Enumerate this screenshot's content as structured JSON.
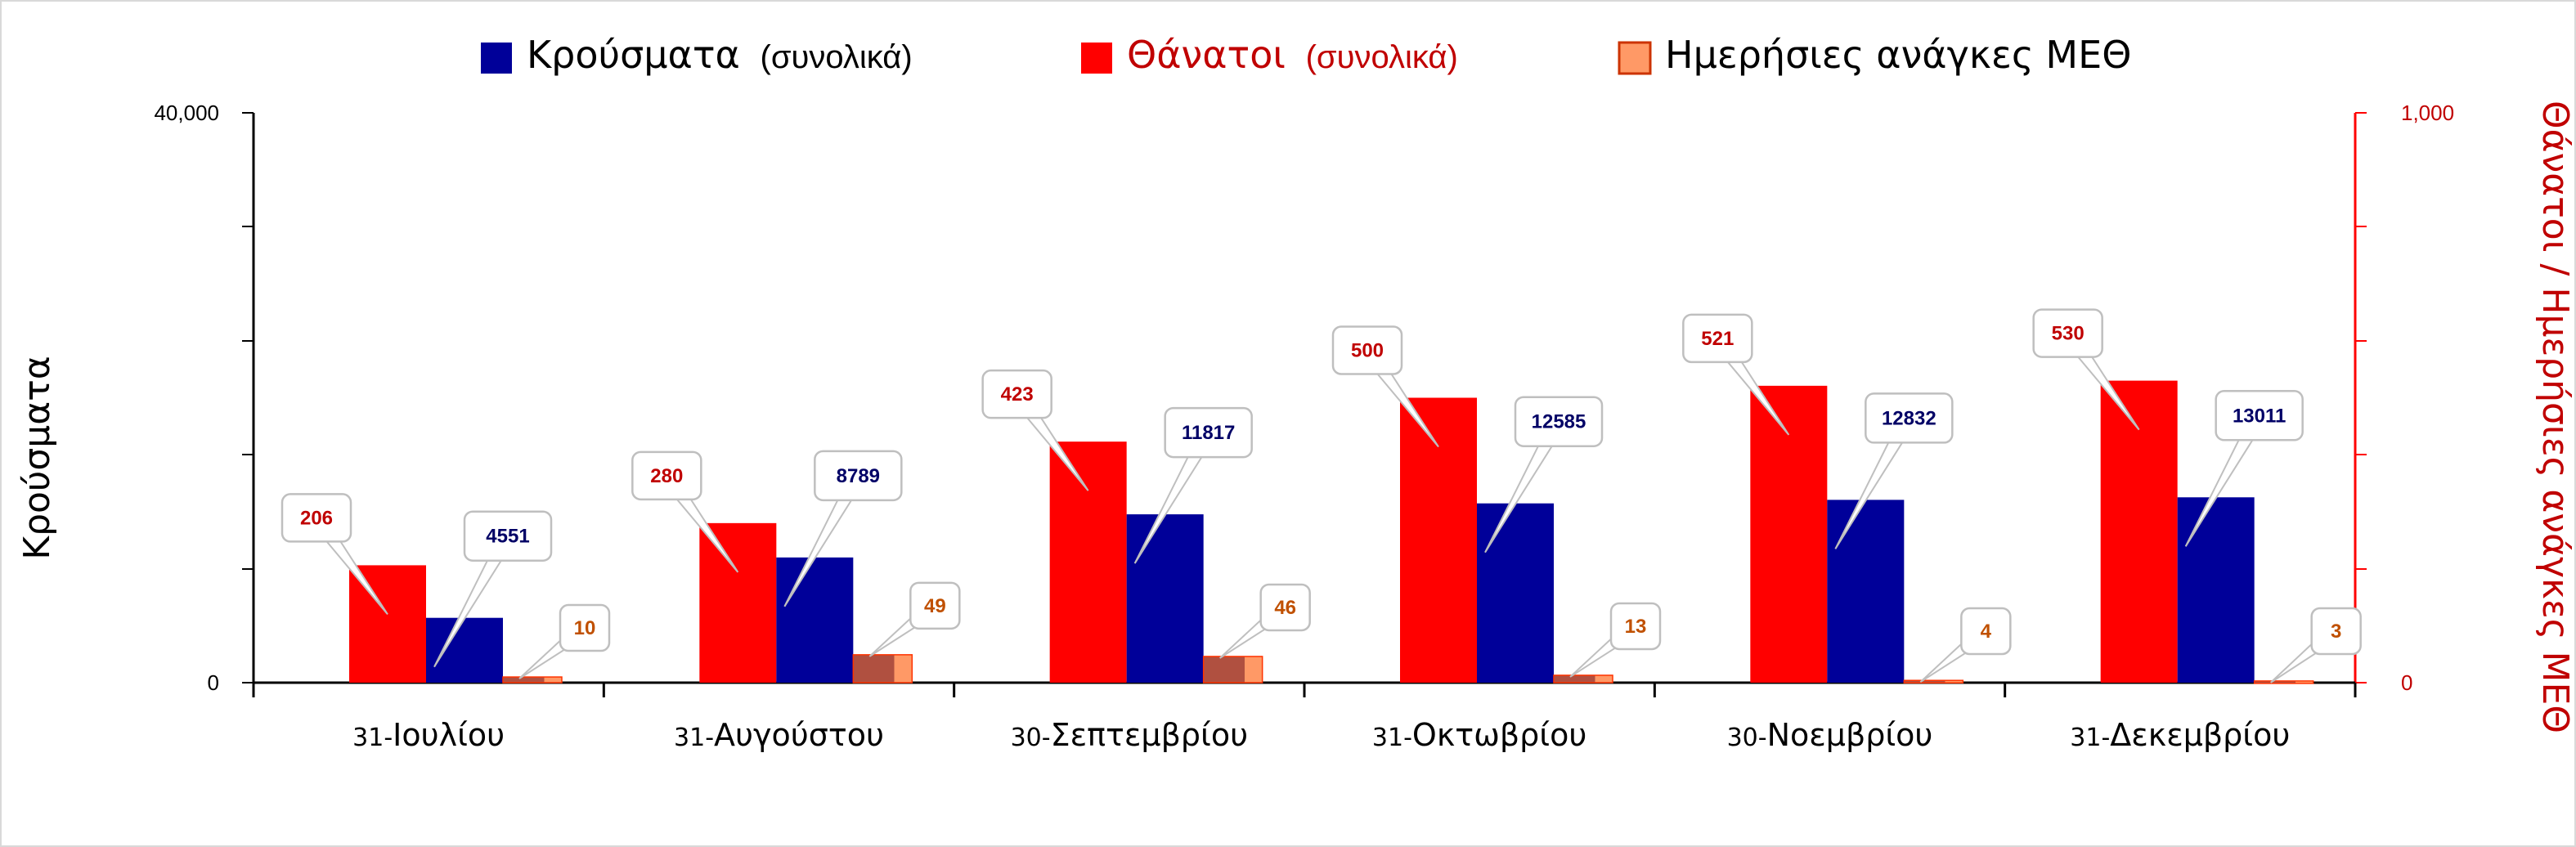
{
  "chart_data": {
    "type": "bar",
    "categories": [
      {
        "day": "31-",
        "month": "Ιουλίου"
      },
      {
        "day": "31-",
        "month": "Αυγούστου"
      },
      {
        "day": "30-",
        "month": "Σεπτεμβρίου"
      },
      {
        "day": "31-",
        "month": "Οκτωβρίου"
      },
      {
        "day": "30-",
        "month": "Νοεμβρίου"
      },
      {
        "day": "31-",
        "month": "Δεκεμβρίου"
      }
    ],
    "series": [
      {
        "name": "Κρούσματα",
        "name_suffix": "(συνολικά)",
        "axis": "left",
        "color": "#000099",
        "values": [
          4551,
          8789,
          11817,
          12585,
          12832,
          13011
        ],
        "label_color": "#000066"
      },
      {
        "name": "Θάνατοι",
        "name_suffix": "(συνολικά)",
        "axis": "right",
        "color": "#ff0000",
        "values": [
          206,
          280,
          423,
          500,
          521,
          530
        ],
        "label_color": "#c00000"
      },
      {
        "name": "Ημερήσιες ανάγκες ΜΕΘ",
        "name_suffix": "",
        "axis": "right",
        "color": "#ff9966",
        "values": [
          10,
          49,
          46,
          13,
          4,
          3
        ],
        "label_color": "#c05000"
      }
    ],
    "ylabel_left": "Κρούσματα",
    "ylabel_right": "Θάνατοι / Ημερήσιες ανάγκες ΜΕΘ",
    "ylim_left": [
      0,
      40000
    ],
    "ylim_right": [
      0,
      1000
    ],
    "yticks_left": [
      "0",
      "40,000"
    ],
    "yticks_right": [
      "0",
      "1,000"
    ],
    "legend_position": "top",
    "grid": false
  }
}
